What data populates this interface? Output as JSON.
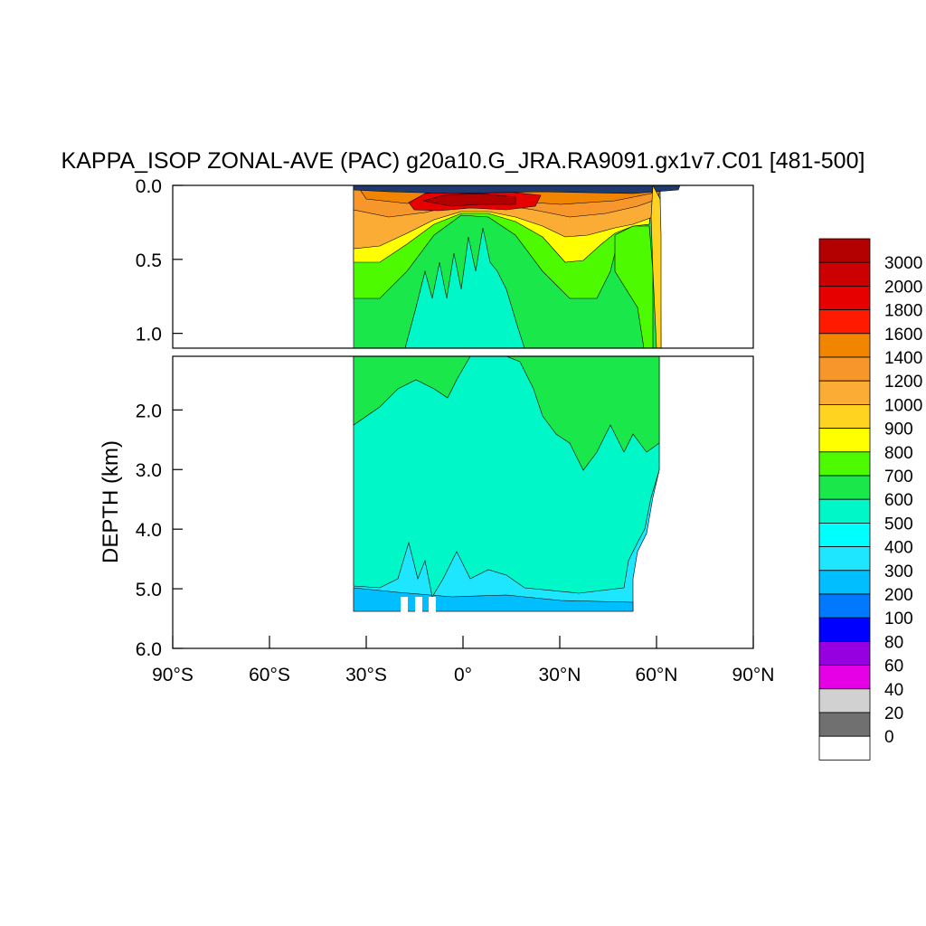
{
  "chart_data": {
    "type": "heatmap",
    "title": "KAPPA_ISOP ZONAL-AVE (PAC) g20a10.G_JRA.RA9091.gx1v7.C01 [481-500]",
    "ylabel": "DEPTH (km)",
    "xlabel": "",
    "xlim": [
      -90,
      90
    ],
    "upper_panel": {
      "ylim": [
        0.0,
        1.1
      ],
      "yticks": [
        "0.0",
        "0.5",
        "1.0"
      ],
      "ytick_values": [
        0.0,
        0.5,
        1.0
      ]
    },
    "lower_panel": {
      "ylim": [
        1.1,
        6.0
      ],
      "yticks": [
        "2.0",
        "3.0",
        "4.0",
        "5.0",
        "6.0"
      ],
      "ytick_values": [
        2.0,
        3.0,
        4.0,
        5.0,
        6.0
      ]
    },
    "xticks": [
      "90°S",
      "60°S",
      "30°S",
      "0°",
      "30°N",
      "60°N",
      "90°N"
    ],
    "xtick_values": [
      -90,
      -60,
      -30,
      0,
      30,
      60,
      90
    ],
    "data_extent": {
      "lat_min": -34,
      "lat_max": 62,
      "max_depth_km": 5.35
    },
    "colorbar": {
      "labels": [
        "3000",
        "2000",
        "1800",
        "1600",
        "1400",
        "1200",
        "1000",
        "900",
        "800",
        "700",
        "600",
        "500",
        "400",
        "300",
        "200",
        "100",
        "80",
        "60",
        "40",
        "20",
        "0"
      ],
      "colors": [
        "#b30000",
        "#cc0000",
        "#e60000",
        "#ff1a00",
        "#f28500",
        "#f7962a",
        "#fbac35",
        "#ffd31f",
        "#ffff00",
        "#4dfa00",
        "#1ae84a",
        "#00f7c8",
        "#00ffff",
        "#1ee6ff",
        "#00beff",
        "#0078ff",
        "#0000ff",
        "#9600e1",
        "#e600e6",
        "#d1d1d1",
        "#707070",
        "#ffffff"
      ]
    }
  }
}
